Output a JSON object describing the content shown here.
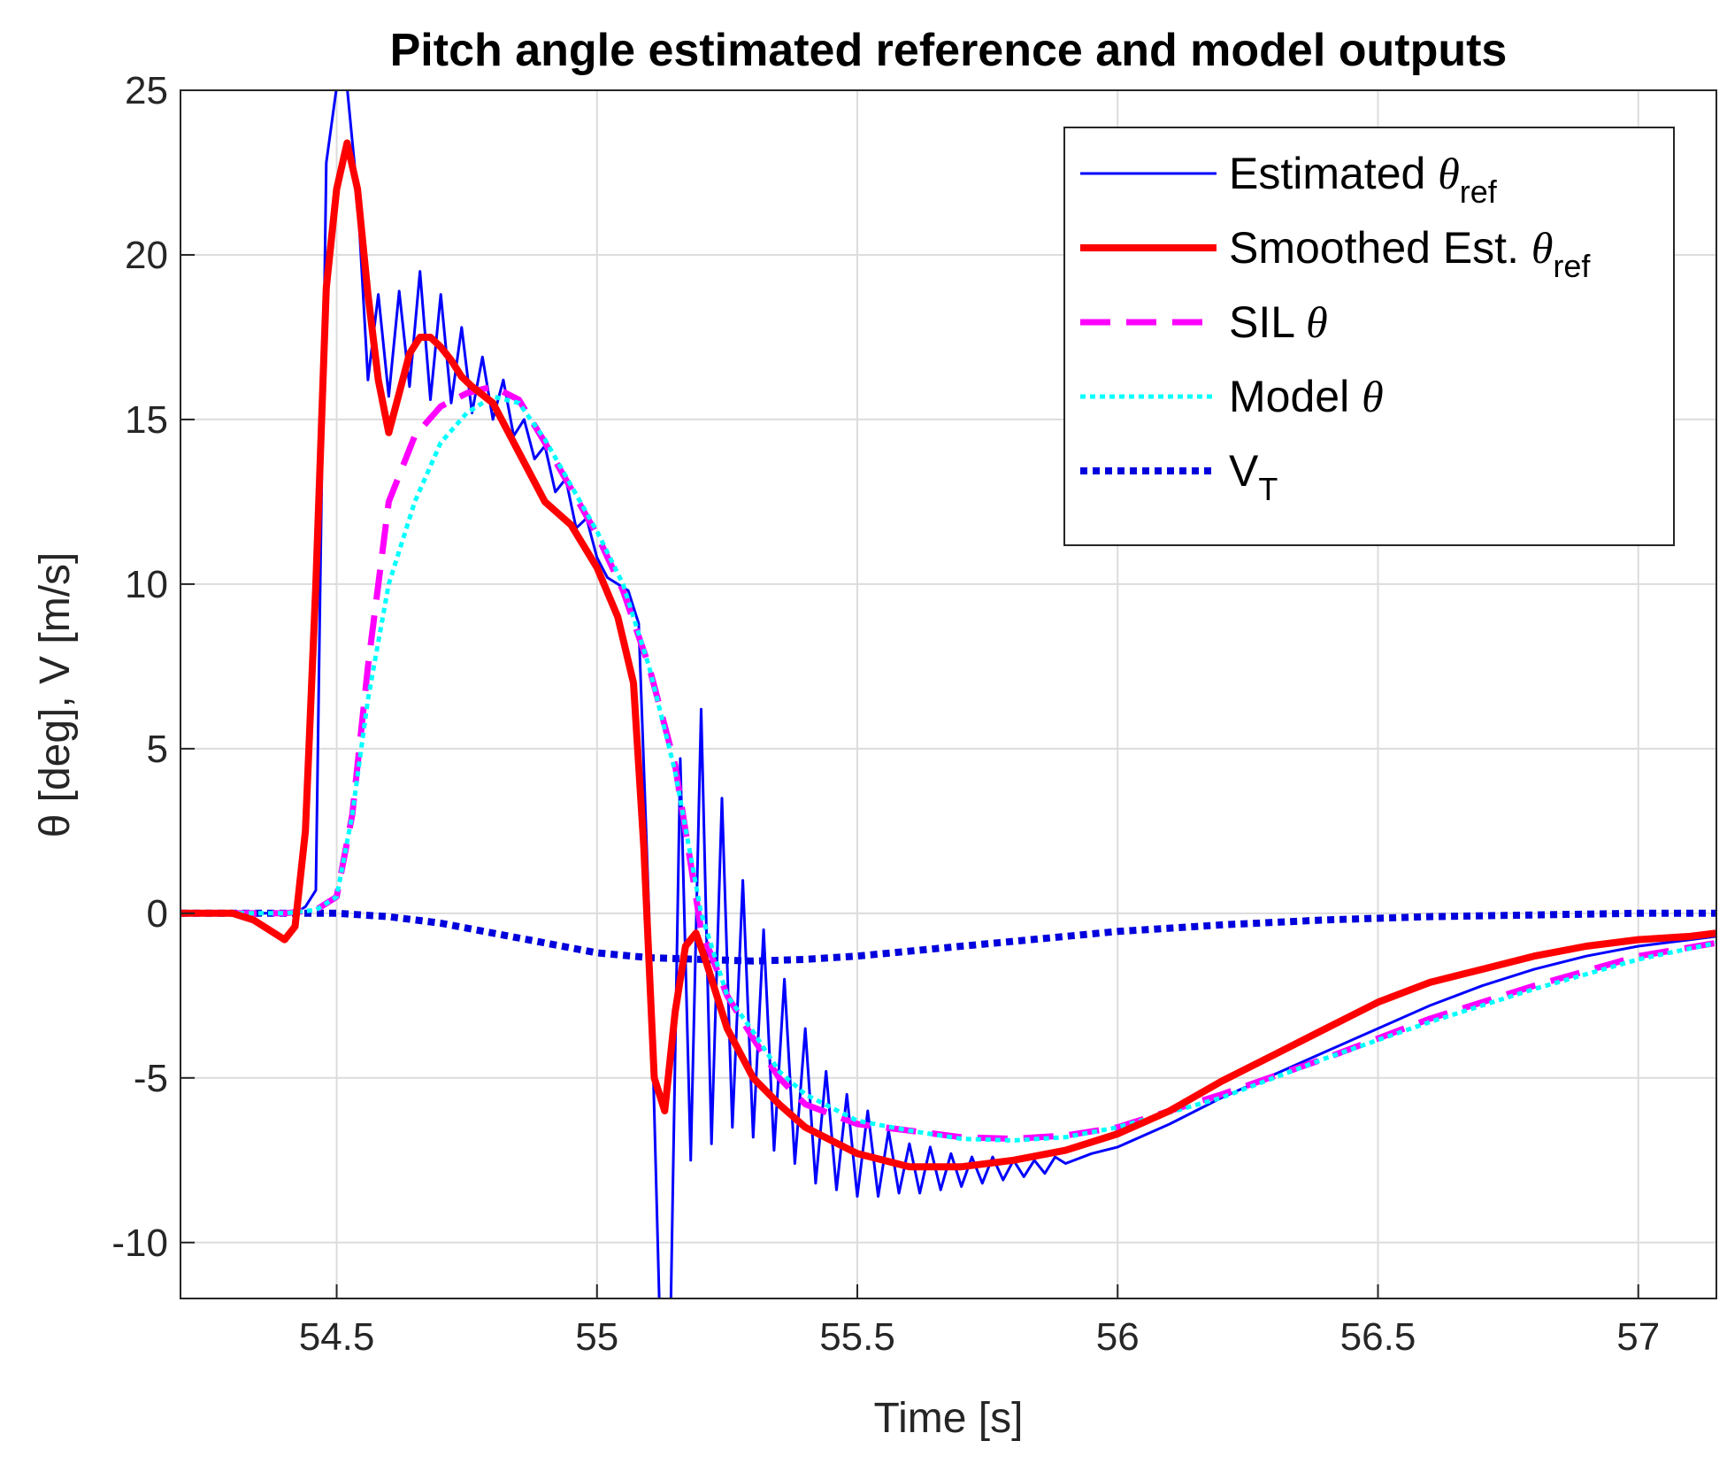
{
  "chart_data": {
    "type": "line",
    "title": "Pitch angle estimated reference and model outputs",
    "xlabel": "Time [s]",
    "ylabel": "θ [deg], V [m/s]",
    "xlim": [
      54.2,
      57.15
    ],
    "ylim": [
      -11.7,
      25
    ],
    "xticks": [
      54.5,
      55,
      55.5,
      56,
      56.5,
      57
    ],
    "xtick_labels": [
      "54.5",
      "55",
      "55.5",
      "56",
      "56.5",
      "57"
    ],
    "yticks": [
      25,
      20,
      15,
      10,
      5,
      0,
      -5,
      -10
    ],
    "ytick_labels": [
      "25",
      "20",
      "15",
      "10",
      "5",
      "0",
      "-5",
      "-10"
    ],
    "grid": true,
    "legend_position": "top-right",
    "series": [
      {
        "name": "Estimated θref",
        "legend_main": "Estimated ",
        "legend_greek": "θ",
        "legend_sub": "ref",
        "color": "#0000ff",
        "style": "solid",
        "width": 3,
        "x": [
          54.2,
          54.3,
          54.35,
          54.38,
          54.4,
          54.42,
          54.44,
          54.46,
          54.48,
          54.5,
          54.52,
          54.54,
          54.56,
          54.58,
          54.6,
          54.62,
          54.64,
          54.66,
          54.68,
          54.7,
          54.72,
          54.74,
          54.76,
          54.78,
          54.8,
          54.82,
          54.84,
          54.86,
          54.88,
          54.9,
          54.92,
          54.94,
          54.96,
          54.98,
          55.0,
          55.02,
          55.04,
          55.06,
          55.08,
          55.1,
          55.12,
          55.14,
          55.16,
          55.18,
          55.2,
          55.22,
          55.24,
          55.26,
          55.28,
          55.3,
          55.32,
          55.34,
          55.36,
          55.38,
          55.4,
          55.42,
          55.44,
          55.46,
          55.48,
          55.5,
          55.52,
          55.54,
          55.56,
          55.58,
          55.6,
          55.62,
          55.64,
          55.66,
          55.68,
          55.7,
          55.72,
          55.74,
          55.76,
          55.78,
          55.8,
          55.82,
          55.84,
          55.86,
          55.88,
          55.9,
          55.95,
          56.0,
          56.1,
          56.2,
          56.3,
          56.4,
          56.5,
          56.6,
          56.7,
          56.8,
          56.9,
          57.0,
          57.1,
          57.15
        ],
        "y": [
          0,
          0,
          0,
          0,
          0,
          0,
          0.2,
          0.7,
          22.8,
          25.1,
          25.1,
          21.8,
          16.2,
          18.8,
          15.7,
          18.9,
          16,
          19.5,
          15.6,
          18.8,
          15.5,
          17.8,
          15.2,
          16.9,
          15,
          16.2,
          14.5,
          15,
          13.8,
          14.2,
          12.8,
          13.2,
          11.7,
          12,
          10.8,
          10.2,
          10,
          9.8,
          8.8,
          0,
          -12,
          -13.5,
          4.7,
          -7.5,
          6.2,
          -7,
          3.5,
          -6.5,
          1,
          -6.8,
          -0.5,
          -7.2,
          -2,
          -7.6,
          -3.5,
          -8.2,
          -4.8,
          -8.4,
          -5.5,
          -8.6,
          -6,
          -8.6,
          -6.6,
          -8.5,
          -7,
          -8.5,
          -7.1,
          -8.4,
          -7.3,
          -8.3,
          -7.4,
          -8.2,
          -7.4,
          -8.1,
          -7.5,
          -8,
          -7.5,
          -7.9,
          -7.4,
          -7.6,
          -7.3,
          -7.1,
          -6.4,
          -5.6,
          -4.9,
          -4.2,
          -3.5,
          -2.8,
          -2.2,
          -1.7,
          -1.3,
          -1.0,
          -0.8,
          -0.7
        ]
      },
      {
        "name": "Smoothed Est. θref",
        "legend_main": "Smoothed Est. ",
        "legend_greek": "θ",
        "legend_sub": "ref",
        "color": "#ff0000",
        "style": "solid",
        "width": 8,
        "x": [
          54.2,
          54.3,
          54.34,
          54.37,
          54.4,
          54.42,
          54.44,
          54.46,
          54.48,
          54.5,
          54.52,
          54.54,
          54.56,
          54.58,
          54.6,
          54.62,
          54.64,
          54.66,
          54.68,
          54.7,
          54.72,
          54.74,
          54.76,
          54.8,
          54.85,
          54.9,
          54.95,
          55.0,
          55.04,
          55.07,
          55.09,
          55.11,
          55.13,
          55.15,
          55.17,
          55.19,
          55.21,
          55.25,
          55.3,
          55.35,
          55.4,
          55.5,
          55.6,
          55.7,
          55.8,
          55.9,
          56.0,
          56.1,
          56.2,
          56.3,
          56.4,
          56.5,
          56.6,
          56.7,
          56.8,
          56.9,
          57.0,
          57.1,
          57.15
        ],
        "y": [
          0,
          0,
          -0.2,
          -0.5,
          -0.8,
          -0.4,
          2.5,
          10,
          19,
          22,
          23.4,
          22,
          18.8,
          16.2,
          14.6,
          15.8,
          17,
          17.5,
          17.5,
          17.2,
          16.8,
          16.3,
          16,
          15.5,
          14,
          12.5,
          11.8,
          10.5,
          9,
          7,
          2,
          -5,
          -6,
          -3,
          -1,
          -0.6,
          -1.5,
          -3.5,
          -5,
          -5.8,
          -6.5,
          -7.3,
          -7.7,
          -7.7,
          -7.5,
          -7.2,
          -6.7,
          -6.0,
          -5.1,
          -4.3,
          -3.5,
          -2.7,
          -2.1,
          -1.7,
          -1.3,
          -1.0,
          -0.8,
          -0.7,
          -0.6
        ]
      },
      {
        "name": "SIL θ",
        "legend_main": "SIL ",
        "legend_greek": "θ",
        "legend_sub": "",
        "color": "#ff00ff",
        "style": "dashed",
        "width": 7,
        "x": [
          54.2,
          54.3,
          54.4,
          54.46,
          54.5,
          54.53,
          54.56,
          54.6,
          54.65,
          54.7,
          54.75,
          54.8,
          54.85,
          54.9,
          54.95,
          55.0,
          55.05,
          55.1,
          55.15,
          55.2,
          55.25,
          55.3,
          55.35,
          55.4,
          55.5,
          55.6,
          55.7,
          55.8,
          55.9,
          56.0,
          56.2,
          56.4,
          56.6,
          56.8,
          57.0,
          57.15
        ],
        "y": [
          0,
          0,
          0,
          0.1,
          0.5,
          3,
          7.5,
          12.5,
          14.5,
          15.4,
          15.8,
          16,
          15.6,
          14.3,
          12.9,
          11.5,
          9.8,
          7.5,
          4.5,
          -0.5,
          -2.5,
          -3.8,
          -5,
          -5.8,
          -6.4,
          -6.6,
          -6.8,
          -6.85,
          -6.75,
          -6.5,
          -5.5,
          -4.4,
          -3.2,
          -2.2,
          -1.3,
          -0.9
        ]
      },
      {
        "name": "Model θ",
        "legend_main": "Model ",
        "legend_greek": "θ",
        "legend_sub": "",
        "color": "#00ffff",
        "style": "dotted",
        "width": 5,
        "x": [
          54.2,
          54.3,
          54.4,
          54.46,
          54.5,
          54.53,
          54.56,
          54.6,
          54.65,
          54.7,
          54.75,
          54.8,
          54.85,
          54.9,
          54.95,
          55.0,
          55.05,
          55.1,
          55.15,
          55.2,
          55.25,
          55.3,
          55.35,
          55.4,
          55.5,
          55.6,
          55.7,
          55.8,
          55.9,
          56.0,
          56.2,
          56.4,
          56.6,
          56.8,
          57.0,
          57.15
        ],
        "y": [
          0,
          0,
          0,
          0.1,
          0.5,
          3,
          6.5,
          10,
          12.5,
          14.3,
          15.2,
          15.7,
          15.5,
          14.4,
          13,
          11.6,
          10,
          7.5,
          4.3,
          0,
          -2.5,
          -3.6,
          -4.8,
          -5.5,
          -6.3,
          -6.6,
          -6.85,
          -6.9,
          -6.8,
          -6.5,
          -5.6,
          -4.4,
          -3.3,
          -2.3,
          -1.4,
          -0.9
        ]
      },
      {
        "name": "VT",
        "legend_main": "V",
        "legend_greek": "",
        "legend_sub": "T",
        "color": "#0000dd",
        "style": "dotted",
        "width": 8,
        "x": [
          54.2,
          54.3,
          54.4,
          54.5,
          54.6,
          54.7,
          54.8,
          54.9,
          55.0,
          55.1,
          55.2,
          55.3,
          55.4,
          55.5,
          55.6,
          55.7,
          55.8,
          55.9,
          56.0,
          56.2,
          56.4,
          56.6,
          56.8,
          57.0,
          57.15
        ],
        "y": [
          0,
          0,
          0,
          0,
          -0.1,
          -0.3,
          -0.6,
          -0.9,
          -1.2,
          -1.35,
          -1.4,
          -1.45,
          -1.4,
          -1.3,
          -1.15,
          -1.0,
          -0.85,
          -0.7,
          -0.55,
          -0.35,
          -0.2,
          -0.1,
          -0.05,
          0,
          0
        ]
      }
    ]
  }
}
